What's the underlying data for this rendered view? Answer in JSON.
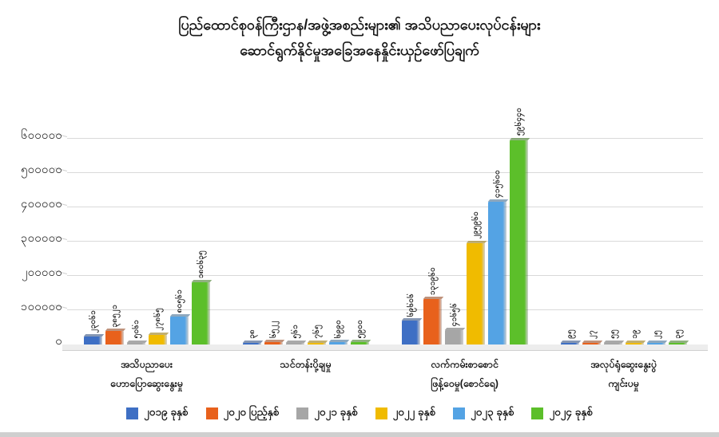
{
  "title": {
    "line1": "ပြည်ထောင်စုဝန်ကြီးဌာန/အဖွဲ့အစည်းများ၏ အသိပညာပေးလုပ်ငန်းများ",
    "line2": "ဆောင်ရွက်နိုင်မှုအခြေအနေနှိုင်းယှဉ်ဖော်ပြချက်"
  },
  "chart_data": {
    "type": "bar",
    "title": "ပြည်ထောင်စုဝန်ကြီးဌာန/အဖွဲ့အစည်းများ၏ အသိပညာပေးလုပ်ငန်းများ ဆောင်ရွက်နိုင်မှုအခြေအနေနှိုင်းယှဉ်ဖော်ပြချက်",
    "grid": true,
    "legend_position": "bottom",
    "ylim": [
      0,
      600000
    ],
    "y_tick_step": 100000,
    "y_ticks": [
      {
        "value": 0,
        "label_mm": "၀"
      },
      {
        "value": 100000,
        "label_mm": "၁၀၀၀၀၀"
      },
      {
        "value": 200000,
        "label_mm": "၂၀၀၀၀၀"
      },
      {
        "value": 300000,
        "label_mm": "၃၀၀၀၀၀"
      },
      {
        "value": 400000,
        "label_mm": "၄၀၀၀၀၀"
      },
      {
        "value": 500000,
        "label_mm": "၅၀၀၀၀၀"
      },
      {
        "value": 600000,
        "label_mm": "၆၀၀၀၀၀"
      }
    ],
    "categories": [
      {
        "lines": [
          "အသိပညာပေး",
          "ဟောပြောဆွေးနွေးမှု"
        ]
      },
      {
        "lines": [
          "သင်တန်းပို့ချမှု"
        ]
      },
      {
        "lines": [
          "လက်ကမ်းစာစောင်",
          "ဖြန့်ဝေမှု(စောင်ရေ)"
        ]
      },
      {
        "lines": [
          "အလုပ်ရုံဆွေးနွေးပွဲ",
          "ကျင်းပမှု"
        ]
      }
    ],
    "series": [
      {
        "name": "၂၀၁၉ ခုနှစ်",
        "color": "#3E6FC4",
        "values": [
          23061,
          38,
          69606,
          95
        ],
        "labels_mm": [
          "၂၃၀၆၁",
          "၃၈",
          "၆၉၆၀၆",
          "၉၅"
        ]
      },
      {
        "name": "၂၀၂၀ ပြည့်နှစ်",
        "color": "#E8611C",
        "values": [
          38521,
          6522,
          131960,
          27
        ],
        "labels_mm": [
          "၃၈၅၂၁",
          "၆၅၂၂",
          "၁၃၁၉၆၀",
          "၂၇"
        ]
      },
      {
        "name": "၂၀၂၁ ခုနှစ်",
        "color": "#A6A6A6",
        "values": [
          5061,
          561,
          41656,
          55
        ],
        "labels_mm": [
          "၅၀၆၁",
          "၅၆၁",
          "၄၁၆၅၆",
          "၅၅"
        ]
      },
      {
        "name": "၂၀၂၂ ခုနှစ်",
        "color": "#F0BB00",
        "values": [
          27865,
          765,
          295960,
          19
        ],
        "labels_mm": [
          "၂၇၈၆၅",
          "၇၆၅",
          "၂၉၅၉၆၀",
          "၁၉"
        ]
      },
      {
        "name": "၂၀၂၃ ခုနှစ်",
        "color": "#54A3E4",
        "values": [
          80561,
          6990,
          415600,
          25
        ],
        "labels_mm": [
          "၈၀၅၆၁",
          "၆၉၉၀",
          "၄၁၅၆၀၀",
          "၂၅"
        ]
      },
      {
        "name": "၂၀၂၄ ခုနှစ်",
        "color": "#5CBF2A",
        "values": [
          180635,
          5900,
          596440,
          35
        ],
        "labels_mm": [
          "၁၈၀၆၃၅",
          "၅၉၀၀",
          "၅၉၆၄၄၀",
          "၃၅"
        ]
      }
    ]
  },
  "colors": {
    "gridline": "#d9d9d9",
    "axis_line": "#b8b8b8",
    "bottom_strip": "#cfcfcf",
    "text": "#141414"
  }
}
